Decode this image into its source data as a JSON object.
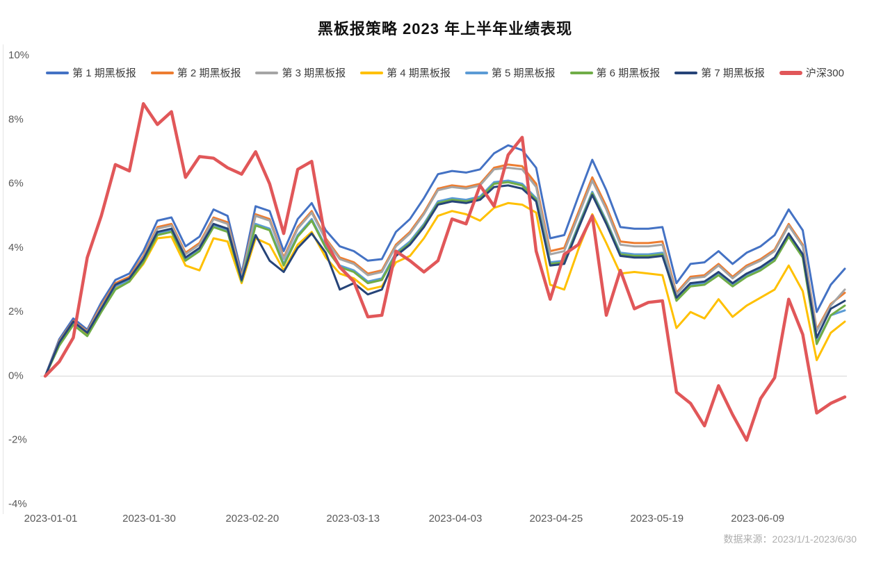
{
  "footer": {
    "source_label": "数据来源：2023/1/1-2023/6/30"
  },
  "chart_data": {
    "type": "line",
    "title": "黑板报策略 2023 年上半年业绩表现",
    "grid": "baseline-only",
    "legend_position": "top",
    "y_axis": {
      "min": -4,
      "max": 10,
      "unit": "%",
      "ticks": [
        {
          "label": "10%",
          "value": 10
        },
        {
          "label": "8%",
          "value": 8
        },
        {
          "label": "6%",
          "value": 6
        },
        {
          "label": "4%",
          "value": 4
        },
        {
          "label": "2%",
          "value": 2
        },
        {
          "label": "0%",
          "value": 0
        },
        {
          "label": "-2%",
          "value": -2
        },
        {
          "label": "-4%",
          "value": -4
        }
      ]
    },
    "x_axis": {
      "ticks": [
        {
          "label": "2023-01-01",
          "pos": 0.007
        },
        {
          "label": "2023-01-30",
          "pos": 0.13
        },
        {
          "label": "2023-02-20",
          "pos": 0.259
        },
        {
          "label": "2023-03-13",
          "pos": 0.385
        },
        {
          "label": "2023-04-03",
          "pos": 0.513
        },
        {
          "label": "2023-04-25",
          "pos": 0.639
        },
        {
          "label": "2023-05-19",
          "pos": 0.765
        },
        {
          "label": "2023-06-09",
          "pos": 0.891
        }
      ]
    },
    "series": [
      {
        "name": "第 1 期黑板报",
        "color": "#4472C4",
        "width": 3,
        "values": [
          0.0,
          1.15,
          1.8,
          1.45,
          2.3,
          3.0,
          3.2,
          3.9,
          4.85,
          4.95,
          4.05,
          4.35,
          5.2,
          5.0,
          3.2,
          5.3,
          5.15,
          3.9,
          4.9,
          5.4,
          4.55,
          4.05,
          3.9,
          3.6,
          3.65,
          4.5,
          4.9,
          5.55,
          6.3,
          6.4,
          6.35,
          6.45,
          6.95,
          7.2,
          7.05,
          6.5,
          4.3,
          4.4,
          5.6,
          6.75,
          5.8,
          4.65,
          4.6,
          4.6,
          4.65,
          2.9,
          3.5,
          3.55,
          3.9,
          3.5,
          3.85,
          4.05,
          4.4,
          5.2,
          4.55,
          2.0,
          2.85,
          3.35
        ]
      },
      {
        "name": "第 2 期黑板报",
        "color": "#ED7D31",
        "width": 3,
        "values": [
          0.0,
          1.1,
          1.72,
          1.4,
          2.2,
          2.9,
          3.1,
          3.75,
          4.65,
          4.75,
          3.85,
          4.15,
          4.95,
          4.8,
          3.1,
          5.05,
          4.9,
          3.7,
          4.65,
          5.15,
          4.3,
          3.7,
          3.55,
          3.2,
          3.3,
          4.1,
          4.5,
          5.1,
          5.85,
          5.95,
          5.9,
          6.0,
          6.5,
          6.6,
          6.55,
          6.0,
          3.9,
          4.0,
          5.1,
          6.2,
          5.3,
          4.2,
          4.15,
          4.15,
          4.2,
          2.6,
          3.1,
          3.15,
          3.5,
          3.1,
          3.45,
          3.65,
          3.95,
          4.75,
          4.1,
          1.45,
          2.25,
          2.6
        ]
      },
      {
        "name": "第 3 期黑板报",
        "color": "#A5A5A5",
        "width": 3,
        "values": [
          0.0,
          1.08,
          1.7,
          1.38,
          2.15,
          2.85,
          3.05,
          3.7,
          4.6,
          4.7,
          3.8,
          4.1,
          4.9,
          4.75,
          3.05,
          5.0,
          4.85,
          3.65,
          4.6,
          5.1,
          4.25,
          3.65,
          3.5,
          3.15,
          3.25,
          4.05,
          4.45,
          5.05,
          5.8,
          5.9,
          5.85,
          5.95,
          6.45,
          6.5,
          6.45,
          5.9,
          3.8,
          3.9,
          5.0,
          6.1,
          5.2,
          4.1,
          4.05,
          4.05,
          4.1,
          2.55,
          3.05,
          3.1,
          3.45,
          3.05,
          3.4,
          3.6,
          3.9,
          4.7,
          4.05,
          1.4,
          2.2,
          2.7
        ]
      },
      {
        "name": "第 4 期黑板报",
        "color": "#FFC000",
        "width": 3,
        "values": [
          0.0,
          1.0,
          1.65,
          1.3,
          2.05,
          2.75,
          2.95,
          3.5,
          4.3,
          4.35,
          3.45,
          3.3,
          4.3,
          4.2,
          2.9,
          4.3,
          4.1,
          3.3,
          4.1,
          4.5,
          3.7,
          3.2,
          3.05,
          2.7,
          2.8,
          3.55,
          3.75,
          4.3,
          5.0,
          5.15,
          5.05,
          4.85,
          5.25,
          5.4,
          5.35,
          5.1,
          2.85,
          2.7,
          3.95,
          5.05,
          4.15,
          3.2,
          3.25,
          3.2,
          3.15,
          1.5,
          2.0,
          1.8,
          2.4,
          1.85,
          2.2,
          2.45,
          2.7,
          3.45,
          2.65,
          0.5,
          1.35,
          1.7
        ]
      },
      {
        "name": "第 5 期黑板报",
        "color": "#5B9BD5",
        "width": 3,
        "values": [
          0.0,
          1.05,
          1.68,
          1.35,
          2.1,
          2.8,
          3.0,
          3.6,
          4.45,
          4.55,
          3.65,
          3.95,
          4.7,
          4.55,
          3.0,
          4.75,
          4.6,
          3.5,
          4.4,
          4.9,
          4.05,
          3.45,
          3.3,
          2.95,
          3.05,
          3.85,
          4.2,
          4.75,
          5.45,
          5.55,
          5.5,
          5.6,
          6.05,
          6.1,
          6.0,
          5.55,
          3.55,
          3.6,
          4.7,
          5.75,
          4.85,
          3.85,
          3.8,
          3.8,
          3.85,
          2.4,
          2.85,
          2.9,
          3.2,
          2.85,
          3.15,
          3.35,
          3.65,
          4.4,
          3.75,
          1.05,
          1.9,
          2.05
        ]
      },
      {
        "name": "第 6 期黑板报",
        "color": "#70AD47",
        "width": 3,
        "values": [
          0.0,
          0.95,
          1.6,
          1.25,
          2.0,
          2.7,
          2.95,
          3.55,
          4.4,
          4.5,
          3.6,
          3.9,
          4.65,
          4.5,
          2.95,
          4.7,
          4.55,
          3.45,
          4.35,
          4.85,
          4.0,
          3.4,
          3.25,
          2.9,
          3.0,
          3.8,
          4.15,
          4.7,
          5.4,
          5.5,
          5.45,
          5.55,
          6.0,
          6.05,
          5.95,
          5.5,
          3.5,
          3.55,
          4.65,
          5.7,
          4.8,
          3.8,
          3.75,
          3.75,
          3.8,
          2.35,
          2.8,
          2.85,
          3.15,
          2.8,
          3.1,
          3.3,
          3.6,
          4.35,
          3.7,
          1.0,
          1.9,
          2.2
        ]
      },
      {
        "name": "第 7 期黑板报",
        "color": "#264478",
        "width": 3,
        "values": [
          0.0,
          1.05,
          1.7,
          1.35,
          2.1,
          2.85,
          3.05,
          3.65,
          4.5,
          4.6,
          3.7,
          4.0,
          4.75,
          4.6,
          3.0,
          4.4,
          3.6,
          3.25,
          4.0,
          4.45,
          3.85,
          2.7,
          2.9,
          2.55,
          2.7,
          3.75,
          4.1,
          4.65,
          5.35,
          5.45,
          5.4,
          5.5,
          5.9,
          5.95,
          5.85,
          5.45,
          3.45,
          3.5,
          4.6,
          5.65,
          4.75,
          3.75,
          3.7,
          3.7,
          3.75,
          2.45,
          2.9,
          2.95,
          3.25,
          2.9,
          3.2,
          3.4,
          3.7,
          4.45,
          3.8,
          1.2,
          2.1,
          2.35
        ]
      },
      {
        "name": "沪深300",
        "color": "#E15759",
        "width": 4.5,
        "values": [
          0.0,
          0.45,
          1.2,
          3.7,
          5.0,
          6.6,
          6.4,
          8.5,
          7.85,
          8.25,
          6.2,
          6.85,
          6.8,
          6.5,
          6.3,
          7.0,
          6.0,
          4.45,
          6.45,
          6.7,
          4.2,
          3.4,
          2.95,
          1.85,
          1.9,
          3.9,
          3.6,
          3.25,
          3.6,
          4.9,
          4.75,
          5.95,
          5.3,
          6.9,
          7.45,
          3.9,
          2.4,
          3.8,
          4.1,
          5.0,
          1.9,
          3.3,
          2.1,
          2.3,
          2.35,
          -0.5,
          -0.85,
          -1.55,
          -0.3,
          -1.2,
          -2.0,
          -0.7,
          -0.05,
          2.4,
          1.3,
          -1.15,
          -0.85,
          -0.65
        ]
      }
    ]
  }
}
